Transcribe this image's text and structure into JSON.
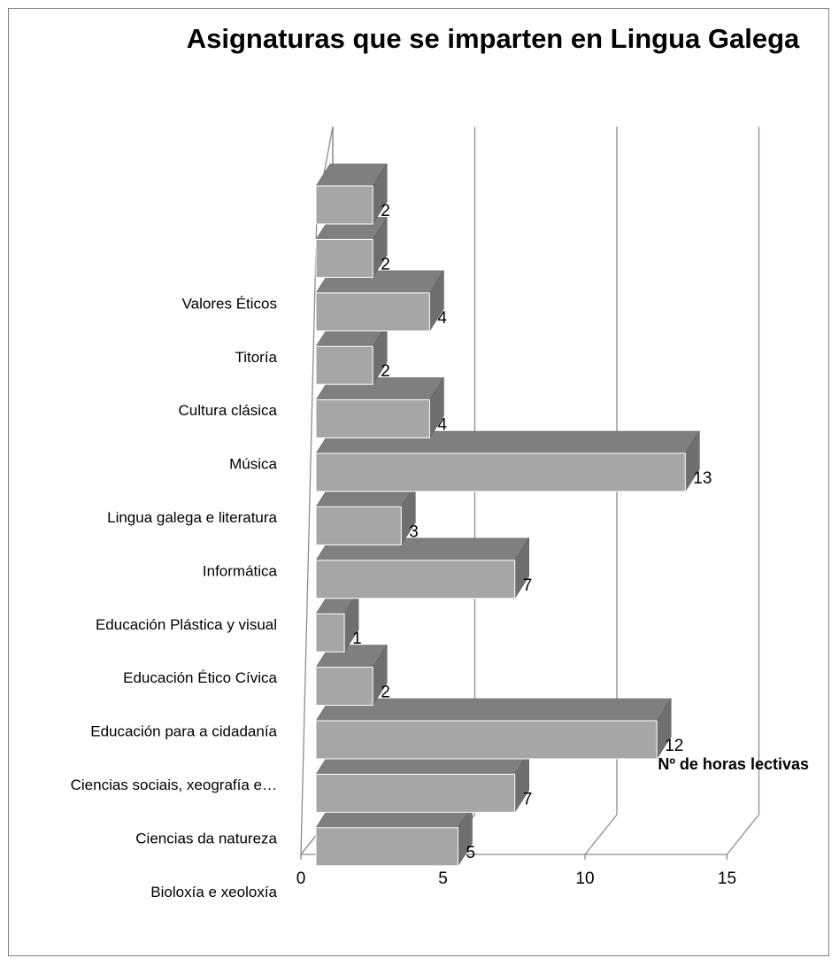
{
  "chart_data": {
    "type": "bar",
    "orientation": "horizontal",
    "style": "3d",
    "title": "Asignaturas que se imparten en Lingua Galega",
    "xlabel": "Nº de horas lectivas",
    "ylabel": "",
    "xlim": [
      0,
      15
    ],
    "xticks": [
      0,
      5,
      10,
      15
    ],
    "grid": true,
    "legend": "none",
    "bar_color": "#a6a6a6",
    "bar_top_color": "#7f7f7f",
    "bar_side_color": "#6f6f6f",
    "categories": [
      "Bioloxía e xeoloxía",
      "Ciencias da  natureza",
      "Ciencias sociais, xeografía e…",
      "Educación para a cidadanía",
      "Educación Ético Cívica",
      "Educación Plástica y visual",
      "Informática",
      "Lingua galega e literatura",
      "Música",
      "Cultura clásica",
      "Titoría",
      "Valores Éticos",
      ""
    ],
    "values": [
      5,
      7,
      12,
      2,
      1,
      7,
      3,
      13,
      4,
      2,
      4,
      2,
      2
    ]
  }
}
